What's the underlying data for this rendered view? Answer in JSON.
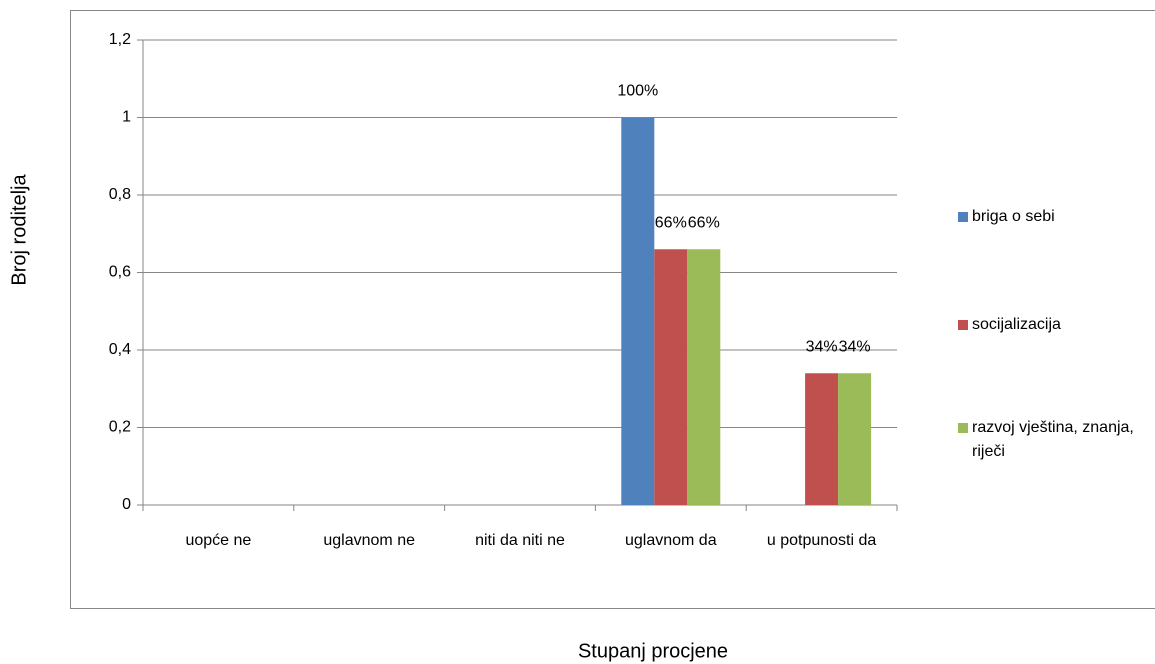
{
  "chart_data": {
    "type": "bar",
    "x_label": "Stupanj procjene",
    "y_label": "Broj roditelja",
    "categories": [
      "uopće ne",
      "uglavnom ne",
      "niti da niti ne",
      "uglavnom da",
      "u potpunosti da"
    ],
    "series": [
      {
        "name": "briga o sebi",
        "color": "#4f81bd",
        "values": [
          0,
          0,
          0,
          1,
          0
        ],
        "value_labels": [
          null,
          null,
          null,
          "100%",
          null
        ]
      },
      {
        "name": "socijalizacija",
        "color": "#c0504d",
        "values": [
          0,
          0,
          0,
          0.66,
          0.34
        ],
        "value_labels": [
          null,
          null,
          null,
          "66%",
          "34%"
        ]
      },
      {
        "name": "razvoj vještina, znanja, riječi",
        "color": "#9bbb59",
        "values": [
          0,
          0,
          0,
          0.66,
          0.34
        ],
        "value_labels": [
          null,
          null,
          null,
          "66%",
          "34%"
        ]
      }
    ],
    "ylim": [
      0,
      1.2
    ],
    "yticks": [
      0,
      {
        "value": 0.2,
        "label": "0,2"
      },
      {
        "value": 0.4,
        "label": "0,4"
      },
      {
        "value": 0.6,
        "label": "0,6"
      },
      {
        "value": 0.8,
        "label": "0,8"
      },
      1,
      {
        "value": 1.2,
        "label": "1,2"
      }
    ],
    "grid": true,
    "legend": "right"
  }
}
